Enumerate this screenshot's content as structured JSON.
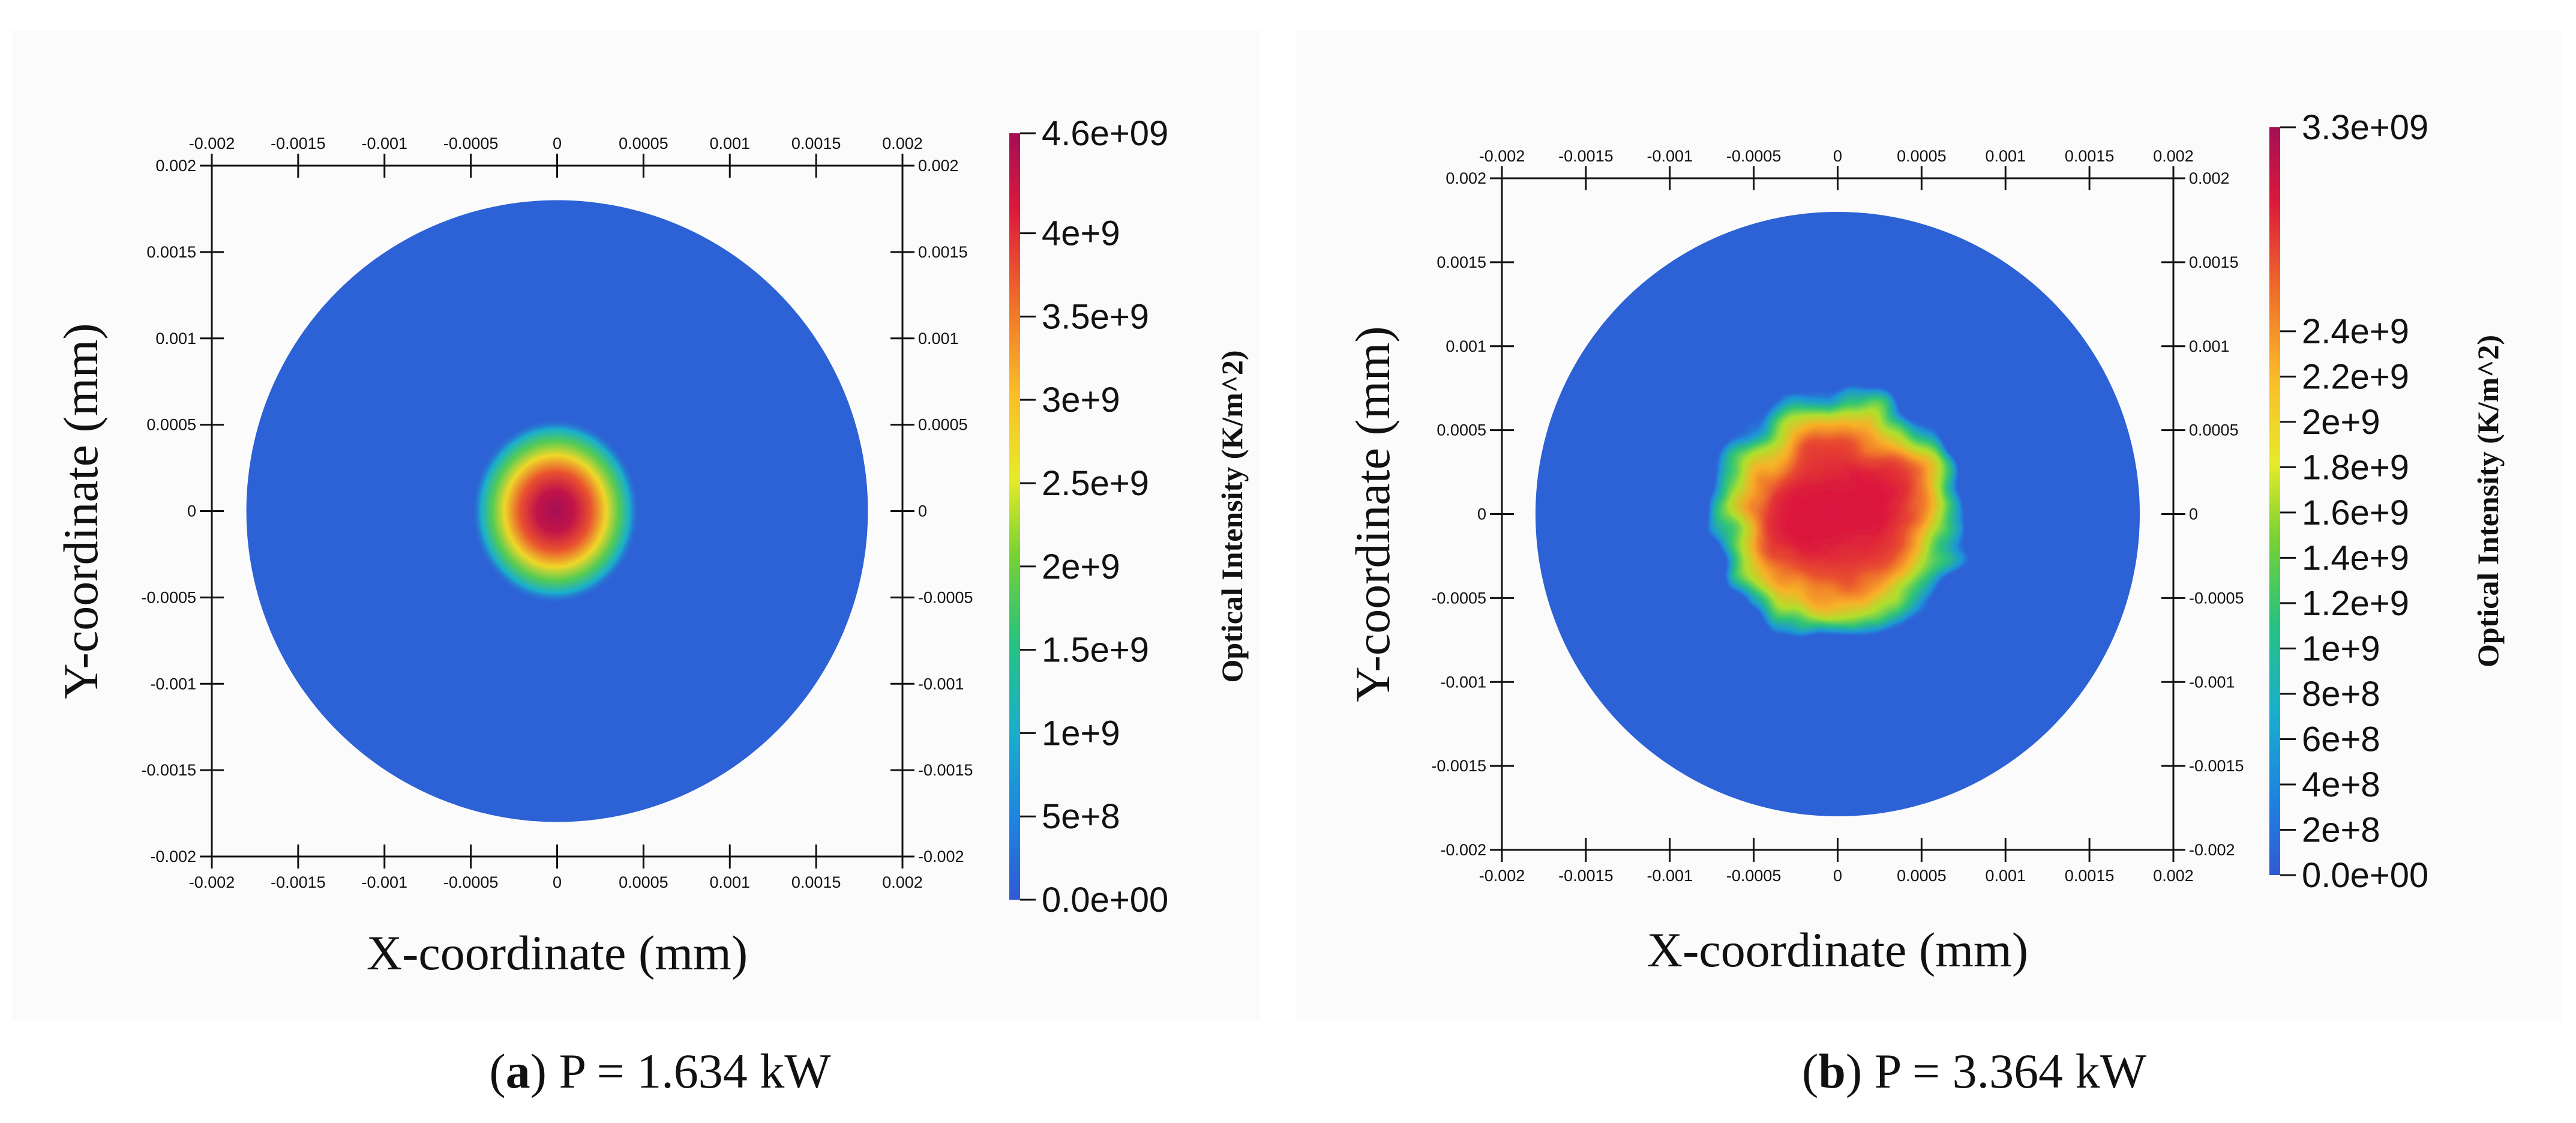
{
  "figure": {
    "captions": [
      {
        "tag": "a",
        "text": "P = 1.634 kW"
      },
      {
        "tag": "b",
        "text": "P = 3.364 kW"
      }
    ]
  },
  "chart_data": [
    {
      "type": "heatmap",
      "panel": "a",
      "xlabel": "X-coordinate (mm)",
      "ylabel": "Y-coordinate (mm)",
      "xlim": [
        -0.002,
        0.002
      ],
      "ylim": [
        -0.002,
        0.002
      ],
      "x_ticks": [
        "-0.002",
        "-0.0015",
        "-0.001",
        "-0.0005",
        "0",
        "0.0005",
        "0.001",
        "0.0015",
        "0.002"
      ],
      "y_ticks": [
        "0.002",
        "0.0015",
        "0.001",
        "0.0005",
        "0",
        "-0.0005",
        "-0.001",
        "-0.0015",
        "-0.002"
      ],
      "domain_radius": 0.0018,
      "spot": {
        "center": [
          -1e-05,
          0.0
        ],
        "radius": 0.0005,
        "peak": 4600000000.0,
        "shape": "gaussian"
      },
      "colorbar": {
        "title": "Optical Intensity (K/m^2)",
        "min": 0,
        "max": 4600000000.0,
        "ticks": [
          {
            "value": 4600000000.0,
            "label": "4.6e+09"
          },
          {
            "value": 4000000000.0,
            "label": "4e+9"
          },
          {
            "value": 3500000000.0,
            "label": "3.5e+9"
          },
          {
            "value": 3000000000.0,
            "label": "3e+9"
          },
          {
            "value": 2500000000.0,
            "label": "2.5e+9"
          },
          {
            "value": 2000000000.0,
            "label": "2e+9"
          },
          {
            "value": 1500000000.0,
            "label": "1.5e+9"
          },
          {
            "value": 1000000000.0,
            "label": "1e+9"
          },
          {
            "value": 500000000.0,
            "label": "5e+8"
          },
          {
            "value": 0,
            "label": "0.0e+00"
          }
        ]
      }
    },
    {
      "type": "heatmap",
      "panel": "b",
      "xlabel": "X-coordinate (mm)",
      "ylabel": "Y-coordinate (mm)",
      "xlim": [
        -0.002,
        0.002
      ],
      "ylim": [
        -0.002,
        0.002
      ],
      "x_ticks": [
        "-0.002",
        "-0.0015",
        "-0.001",
        "-0.0005",
        "0",
        "0.0005",
        "0.001",
        "0.0015",
        "0.002"
      ],
      "y_ticks": [
        "0.002",
        "0.0015",
        "0.001",
        "0.0005",
        "0",
        "-0.0005",
        "-0.001",
        "-0.0015",
        "-0.002"
      ],
      "domain_radius": 0.0018,
      "spot": {
        "center": [
          0.0,
          0.0
        ],
        "radius": 0.00075,
        "peak": 3300000000.0,
        "shape": "flat-top"
      },
      "colorbar": {
        "title": "Optical Intensity (K/m^2)",
        "min": 0,
        "max": 3300000000.0,
        "ticks": [
          {
            "value": 3300000000.0,
            "label": "3.3e+09"
          },
          {
            "value": 2400000000.0,
            "label": "2.4e+9"
          },
          {
            "value": 2200000000.0,
            "label": "2.2e+9"
          },
          {
            "value": 2000000000.0,
            "label": "2e+9"
          },
          {
            "value": 1800000000.0,
            "label": "1.8e+9"
          },
          {
            "value": 1600000000.0,
            "label": "1.6e+9"
          },
          {
            "value": 1400000000.0,
            "label": "1.4e+9"
          },
          {
            "value": 1200000000.0,
            "label": "1.2e+9"
          },
          {
            "value": 1000000000.0,
            "label": "1e+9"
          },
          {
            "value": 800000000.0,
            "label": "8e+8"
          },
          {
            "value": 600000000.0,
            "label": "6e+8"
          },
          {
            "value": 400000000.0,
            "label": "4e+8"
          },
          {
            "value": 200000000.0,
            "label": "2e+8"
          },
          {
            "value": 0,
            "label": "0.0e+00"
          }
        ]
      }
    }
  ]
}
